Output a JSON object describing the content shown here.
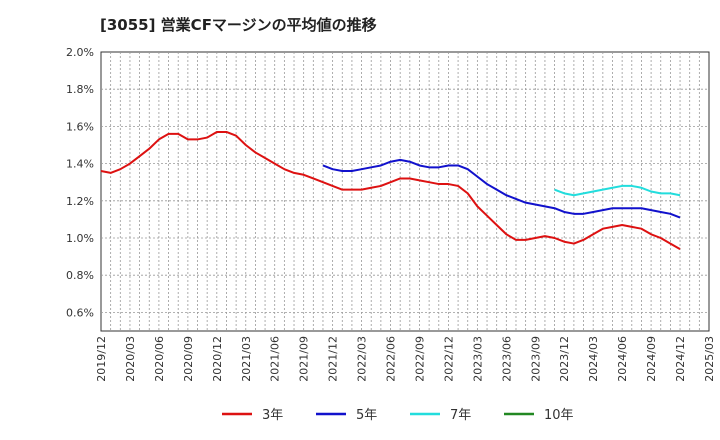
{
  "chart_data": {
    "type": "line",
    "title": "[3055]  営業CFマージンの平均値の推移",
    "xlabel": "",
    "ylabel": "",
    "ylim": [
      0.5,
      2.0
    ],
    "y_ticks": [
      "0.6%",
      "0.8%",
      "1.0%",
      "1.2%",
      "1.4%",
      "1.6%",
      "1.8%",
      "2.0%"
    ],
    "x_ticks": [
      "2019/12",
      "2020/03",
      "2020/06",
      "2020/09",
      "2020/12",
      "2021/03",
      "2021/06",
      "2021/09",
      "2021/12",
      "2022/03",
      "2022/06",
      "2022/09",
      "2022/12",
      "2023/03",
      "2023/06",
      "2023/09",
      "2023/12",
      "2024/03",
      "2024/06",
      "2024/09",
      "2024/12",
      "2025/03"
    ],
    "grid": true,
    "legend_position": "bottom",
    "series": [
      {
        "name": "3年",
        "color": "#dd1111",
        "points": [
          [
            "2019/12",
            1.36
          ],
          [
            "2020/01",
            1.35
          ],
          [
            "2020/02",
            1.37
          ],
          [
            "2020/03",
            1.4
          ],
          [
            "2020/04",
            1.44
          ],
          [
            "2020/05",
            1.48
          ],
          [
            "2020/06",
            1.53
          ],
          [
            "2020/07",
            1.56
          ],
          [
            "2020/08",
            1.56
          ],
          [
            "2020/09",
            1.53
          ],
          [
            "2020/10",
            1.53
          ],
          [
            "2020/11",
            1.54
          ],
          [
            "2020/12",
            1.57
          ],
          [
            "2021/01",
            1.57
          ],
          [
            "2021/02",
            1.55
          ],
          [
            "2021/03",
            1.5
          ],
          [
            "2021/04",
            1.46
          ],
          [
            "2021/05",
            1.43
          ],
          [
            "2021/06",
            1.4
          ],
          [
            "2021/07",
            1.37
          ],
          [
            "2021/08",
            1.35
          ],
          [
            "2021/09",
            1.34
          ],
          [
            "2021/10",
            1.32
          ],
          [
            "2021/11",
            1.3
          ],
          [
            "2021/12",
            1.28
          ],
          [
            "2022/01",
            1.26
          ],
          [
            "2022/02",
            1.26
          ],
          [
            "2022/03",
            1.26
          ],
          [
            "2022/04",
            1.27
          ],
          [
            "2022/05",
            1.28
          ],
          [
            "2022/06",
            1.3
          ],
          [
            "2022/07",
            1.32
          ],
          [
            "2022/08",
            1.32
          ],
          [
            "2022/09",
            1.31
          ],
          [
            "2022/10",
            1.3
          ],
          [
            "2022/11",
            1.29
          ],
          [
            "2022/12",
            1.29
          ],
          [
            "2023/01",
            1.28
          ],
          [
            "2023/02",
            1.24
          ],
          [
            "2023/03",
            1.17
          ],
          [
            "2023/04",
            1.12
          ],
          [
            "2023/05",
            1.07
          ],
          [
            "2023/06",
            1.02
          ],
          [
            "2023/07",
            0.99
          ],
          [
            "2023/08",
            0.99
          ],
          [
            "2023/09",
            1.0
          ],
          [
            "2023/10",
            1.01
          ],
          [
            "2023/11",
            1.0
          ],
          [
            "2023/12",
            0.98
          ],
          [
            "2024/01",
            0.97
          ],
          [
            "2024/02",
            0.99
          ],
          [
            "2024/03",
            1.02
          ],
          [
            "2024/04",
            1.05
          ],
          [
            "2024/05",
            1.06
          ],
          [
            "2024/06",
            1.07
          ],
          [
            "2024/07",
            1.06
          ],
          [
            "2024/08",
            1.05
          ],
          [
            "2024/09",
            1.02
          ],
          [
            "2024/10",
            1.0
          ],
          [
            "2024/11",
            0.97
          ],
          [
            "2024/12",
            0.94
          ]
        ]
      },
      {
        "name": "5年",
        "color": "#1111cc",
        "points": [
          [
            "2021/11",
            1.39
          ],
          [
            "2021/12",
            1.37
          ],
          [
            "2022/01",
            1.36
          ],
          [
            "2022/02",
            1.36
          ],
          [
            "2022/03",
            1.37
          ],
          [
            "2022/04",
            1.38
          ],
          [
            "2022/05",
            1.39
          ],
          [
            "2022/06",
            1.41
          ],
          [
            "2022/07",
            1.42
          ],
          [
            "2022/08",
            1.41
          ],
          [
            "2022/09",
            1.39
          ],
          [
            "2022/10",
            1.38
          ],
          [
            "2022/11",
            1.38
          ],
          [
            "2022/12",
            1.39
          ],
          [
            "2023/01",
            1.39
          ],
          [
            "2023/02",
            1.37
          ],
          [
            "2023/03",
            1.33
          ],
          [
            "2023/04",
            1.29
          ],
          [
            "2023/05",
            1.26
          ],
          [
            "2023/06",
            1.23
          ],
          [
            "2023/07",
            1.21
          ],
          [
            "2023/08",
            1.19
          ],
          [
            "2023/09",
            1.18
          ],
          [
            "2023/10",
            1.17
          ],
          [
            "2023/11",
            1.16
          ],
          [
            "2023/12",
            1.14
          ],
          [
            "2024/01",
            1.13
          ],
          [
            "2024/02",
            1.13
          ],
          [
            "2024/03",
            1.14
          ],
          [
            "2024/04",
            1.15
          ],
          [
            "2024/05",
            1.16
          ],
          [
            "2024/06",
            1.16
          ],
          [
            "2024/07",
            1.16
          ],
          [
            "2024/08",
            1.16
          ],
          [
            "2024/09",
            1.15
          ],
          [
            "2024/10",
            1.14
          ],
          [
            "2024/11",
            1.13
          ],
          [
            "2024/12",
            1.11
          ]
        ]
      },
      {
        "name": "7年",
        "color": "#22dddd",
        "points": [
          [
            "2023/11",
            1.26
          ],
          [
            "2023/12",
            1.24
          ],
          [
            "2024/01",
            1.23
          ],
          [
            "2024/02",
            1.24
          ],
          [
            "2024/03",
            1.25
          ],
          [
            "2024/04",
            1.26
          ],
          [
            "2024/05",
            1.27
          ],
          [
            "2024/06",
            1.28
          ],
          [
            "2024/07",
            1.28
          ],
          [
            "2024/08",
            1.27
          ],
          [
            "2024/09",
            1.25
          ],
          [
            "2024/10",
            1.24
          ],
          [
            "2024/11",
            1.24
          ],
          [
            "2024/12",
            1.23
          ]
        ]
      },
      {
        "name": "10年",
        "color": "#228822",
        "points": []
      }
    ]
  }
}
